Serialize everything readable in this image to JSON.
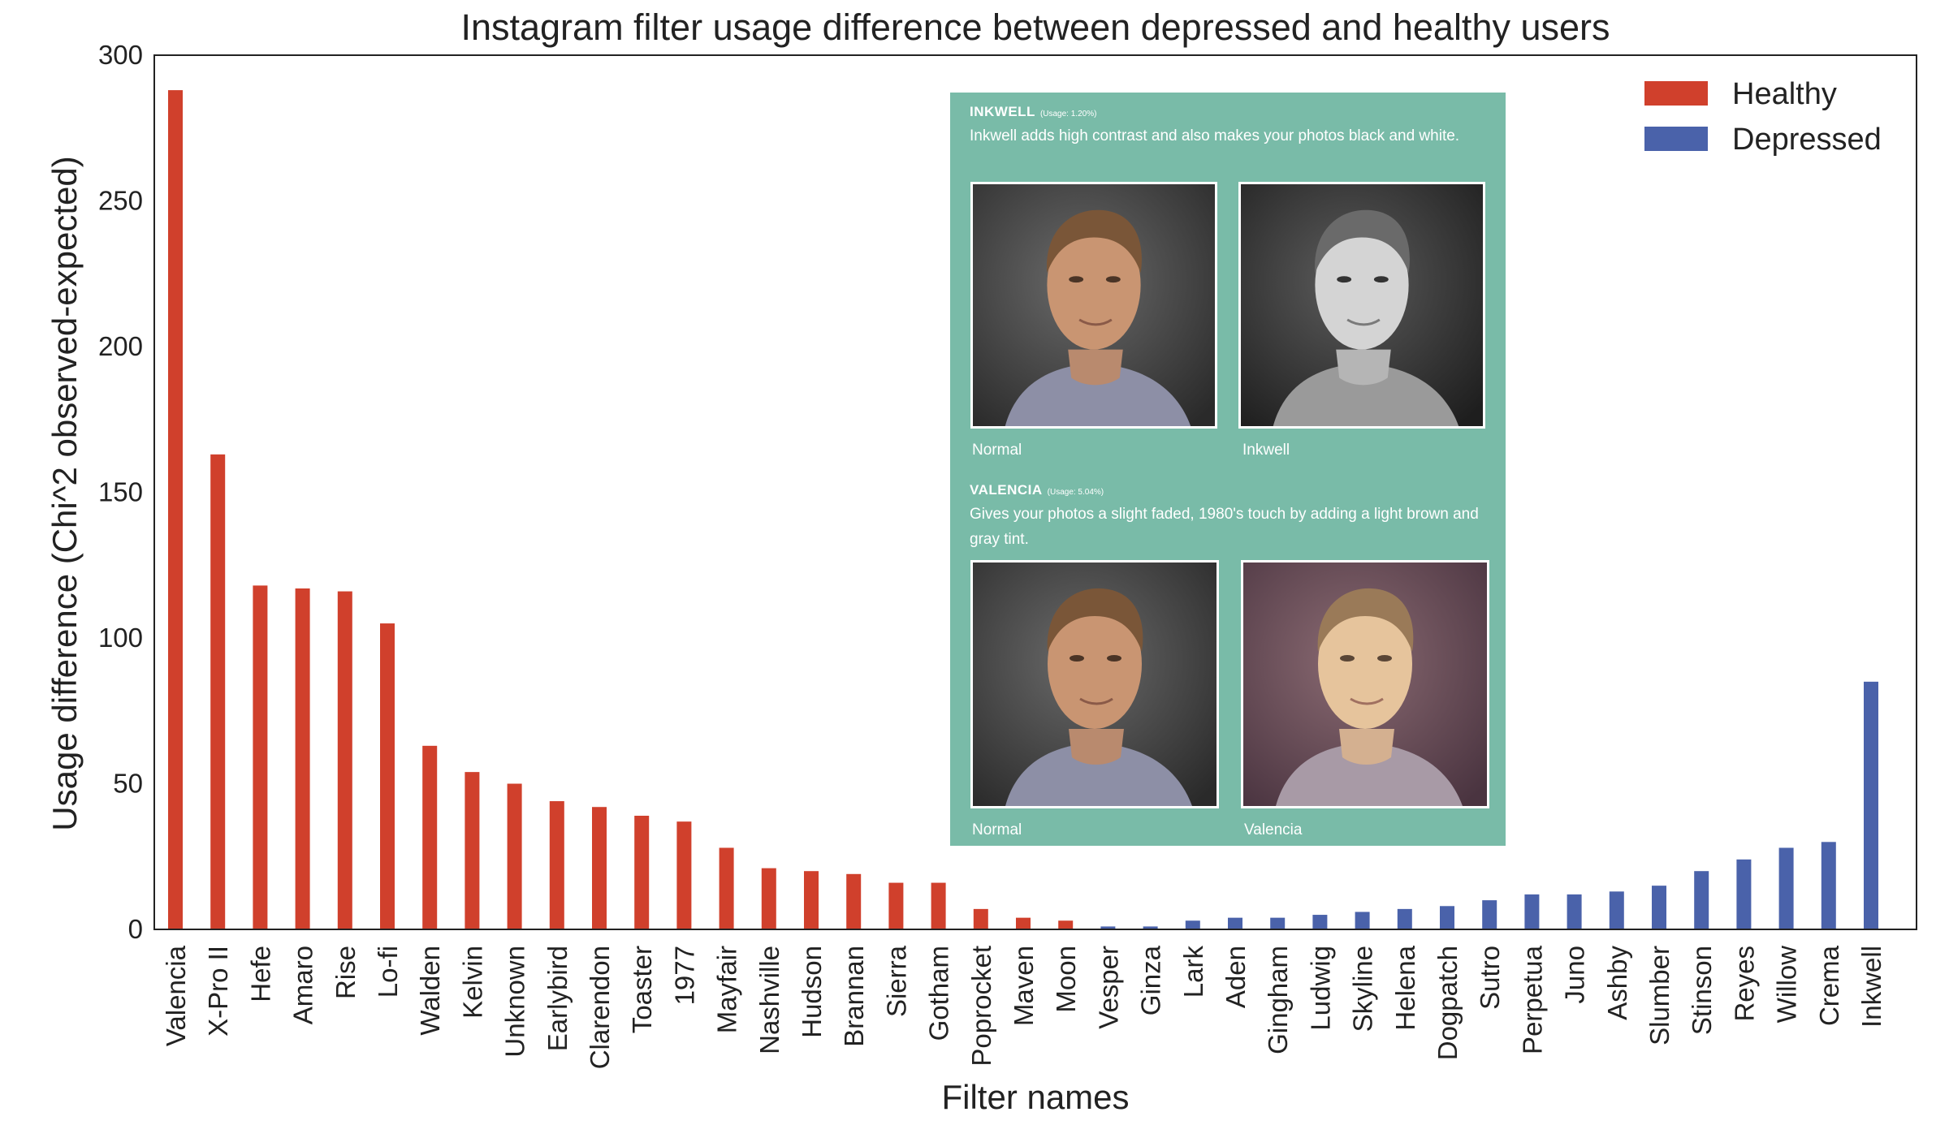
{
  "chart_data": {
    "type": "bar",
    "title": "Instagram filter usage difference between depressed and healthy users",
    "xlabel": "Filter names",
    "ylabel": "Usage difference (Chi^2 observed-expected)",
    "ylim": [
      0,
      300
    ],
    "yticks": [
      0,
      50,
      100,
      150,
      200,
      250,
      300
    ],
    "grid": false,
    "legend_position": "top-right",
    "categories": [
      "Valencia",
      "X-Pro II",
      "Hefe",
      "Amaro",
      "Rise",
      "Lo-fi",
      "Walden",
      "Kelvin",
      "Unknown",
      "Earlybird",
      "Clarendon",
      "Toaster",
      "1977",
      "Mayfair",
      "Nashville",
      "Hudson",
      "Brannan",
      "Sierra",
      "Gotham",
      "Poprocket",
      "Maven",
      "Moon",
      "Vesper",
      "Ginza",
      "Lark",
      "Aden",
      "Gingham",
      "Ludwig",
      "Skyline",
      "Helena",
      "Dogpatch",
      "Sutro",
      "Perpetua",
      "Juno",
      "Ashby",
      "Slumber",
      "Stinson",
      "Reyes",
      "Willow",
      "Crema",
      "Inkwell"
    ],
    "values": [
      288,
      163,
      118,
      117,
      116,
      105,
      63,
      54,
      50,
      44,
      42,
      39,
      37,
      28,
      21,
      20,
      19,
      16,
      16,
      7,
      4,
      3,
      1,
      1,
      3,
      4,
      4,
      5,
      6,
      7,
      8,
      10,
      12,
      12,
      13,
      15,
      20,
      24,
      28,
      30,
      85
    ],
    "groups": [
      "Healthy",
      "Healthy",
      "Healthy",
      "Healthy",
      "Healthy",
      "Healthy",
      "Healthy",
      "Healthy",
      "Healthy",
      "Healthy",
      "Healthy",
      "Healthy",
      "Healthy",
      "Healthy",
      "Healthy",
      "Healthy",
      "Healthy",
      "Healthy",
      "Healthy",
      "Healthy",
      "Healthy",
      "Healthy",
      "Depressed",
      "Depressed",
      "Depressed",
      "Depressed",
      "Depressed",
      "Depressed",
      "Depressed",
      "Depressed",
      "Depressed",
      "Depressed",
      "Depressed",
      "Depressed",
      "Depressed",
      "Depressed",
      "Depressed",
      "Depressed",
      "Depressed",
      "Depressed",
      "Depressed"
    ],
    "series": [
      {
        "name": "Healthy",
        "color": "#d0402c"
      },
      {
        "name": "Depressed",
        "color": "#4a62aa"
      }
    ]
  },
  "inset": {
    "inkwell": {
      "title": "INKWELL",
      "usage": "(Usage: 1.20%)",
      "description": "Inkwell adds high contrast and also makes your photos black and white.",
      "captions": [
        "Normal",
        "Inkwell"
      ]
    },
    "valencia": {
      "title": "VALENCIA",
      "usage": "(Usage: 5.04%)",
      "description": "Gives your photos a slight faded, 1980's touch by adding a light brown and gray tint.",
      "captions": [
        "Normal",
        "Valencia"
      ]
    }
  }
}
